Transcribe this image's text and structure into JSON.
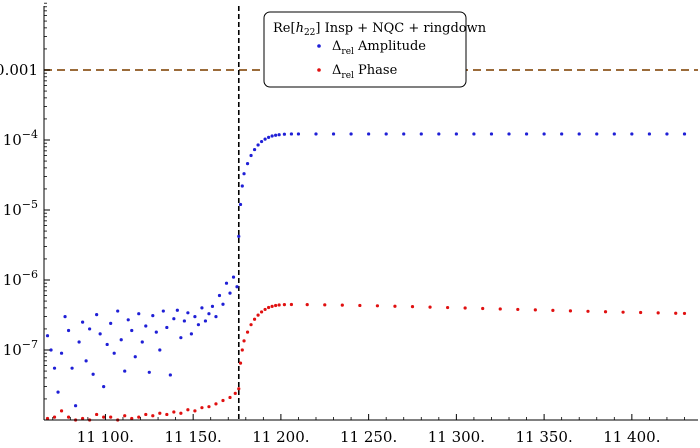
{
  "chart_data": {
    "type": "scatter",
    "title": "",
    "xlabel": "",
    "ylabel": "",
    "xlim": [
      11065,
      11432
    ],
    "ylim": [
      1e-08,
      0.01
    ],
    "yscale": "log",
    "grid": false,
    "x_ticks": [
      {
        "value": 11100,
        "label": "11 100."
      },
      {
        "value": 11150,
        "label": "11 150."
      },
      {
        "value": 11200,
        "label": "11 200."
      },
      {
        "value": 11250,
        "label": "11 250."
      },
      {
        "value": 11300,
        "label": "11 300."
      },
      {
        "value": 11350,
        "label": "11 350."
      },
      {
        "value": 11400,
        "label": "11 400."
      }
    ],
    "y_ticks": [
      {
        "value": 1e-07,
        "base": "10",
        "exp": "−7"
      },
      {
        "value": 1e-06,
        "base": "10",
        "exp": "−6"
      },
      {
        "value": 1e-05,
        "base": "10",
        "exp": "−5"
      },
      {
        "value": 0.0001,
        "base": "10",
        "exp": "−4"
      },
      {
        "value": 0.001,
        "label": "0.001"
      }
    ],
    "reference_lines": [
      {
        "orientation": "horizontal",
        "value": 0.001,
        "style": "dashed",
        "color": "#9b6b3a"
      },
      {
        "orientation": "vertical",
        "value": 11176,
        "style": "dashed",
        "color": "#000000"
      }
    ],
    "legend": {
      "position": "top-center",
      "title_prefix": "Re[",
      "title_h": "h",
      "title_sub": "22",
      "title_suffix": "]  Insp + NQC + ringdown",
      "entries": [
        {
          "delta": "Δ",
          "sub": "rel",
          "text": " Amplitude",
          "color": "#1f1fd6"
        },
        {
          "delta": "Δ",
          "sub": "rel",
          "text": " Phase",
          "color": "#e01010"
        }
      ]
    },
    "series": [
      {
        "name": "Δrel Amplitude",
        "color": "#1f1fd6",
        "points": [
          [
            11067,
            1.6e-07
          ],
          [
            11069,
            1e-07
          ],
          [
            11071,
            5.5e-08
          ],
          [
            11073,
            2.5e-08
          ],
          [
            11075,
            9e-08
          ],
          [
            11077,
            3e-07
          ],
          [
            11079,
            1.9e-07
          ],
          [
            11081,
            5.5e-08
          ],
          [
            11083,
            1.6e-08
          ],
          [
            11085,
            1.3e-07
          ],
          [
            11087,
            2.5e-07
          ],
          [
            11089,
            7e-08
          ],
          [
            11091,
            2e-07
          ],
          [
            11093,
            4.5e-08
          ],
          [
            11095,
            3.2e-07
          ],
          [
            11097,
            1.7e-07
          ],
          [
            11099,
            3e-08
          ],
          [
            11101,
            1.2e-07
          ],
          [
            11103,
            2.4e-07
          ],
          [
            11105,
            9e-08
          ],
          [
            11107,
            3.6e-07
          ],
          [
            11109,
            1.4e-07
          ],
          [
            11111,
            5e-08
          ],
          [
            11113,
            2.7e-07
          ],
          [
            11115,
            1.9e-07
          ],
          [
            11117,
            8e-08
          ],
          [
            11119,
            3.3e-07
          ],
          [
            11121,
            1.3e-07
          ],
          [
            11123,
            2.2e-07
          ],
          [
            11125,
            4.8e-08
          ],
          [
            11127,
            3.1e-07
          ],
          [
            11129,
            1.8e-07
          ],
          [
            11131,
            1e-07
          ],
          [
            11133,
            3.6e-07
          ],
          [
            11135,
            2.1e-07
          ],
          [
            11137,
            4.4e-08
          ],
          [
            11139,
            2.8e-07
          ],
          [
            11141,
            3.7e-07
          ],
          [
            11143,
            1.5e-07
          ],
          [
            11145,
            2.6e-07
          ],
          [
            11147,
            3.4e-07
          ],
          [
            11149,
            1.7e-07
          ],
          [
            11151,
            3e-07
          ],
          [
            11153,
            2.3e-07
          ],
          [
            11155,
            4e-07
          ],
          [
            11157,
            2.6e-07
          ],
          [
            11159,
            3.3e-07
          ],
          [
            11161,
            4.2e-07
          ],
          [
            11163,
            3e-07
          ],
          [
            11165,
            6e-07
          ],
          [
            11167,
            4.5e-07
          ],
          [
            11169,
            9e-07
          ],
          [
            11171,
            6.5e-07
          ],
          [
            11173,
            1.1e-06
          ],
          [
            11175,
            8e-07
          ],
          [
            11176,
            4.2e-06
          ],
          [
            11177,
            1.2e-05
          ],
          [
            11178,
            2.2e-05
          ],
          [
            11179,
            3.3e-05
          ],
          [
            11181,
            4.6e-05
          ],
          [
            11183,
            6e-05
          ],
          [
            11185,
            7.3e-05
          ],
          [
            11187,
            8.5e-05
          ],
          [
            11189,
            9.5e-05
          ],
          [
            11191,
            0.000103
          ],
          [
            11193,
            0.000109
          ],
          [
            11195,
            0.000114
          ],
          [
            11197,
            0.000117
          ],
          [
            11199,
            0.000119
          ],
          [
            11202,
            0.000121
          ],
          [
            11206,
            0.000122
          ],
          [
            11210,
            0.000122
          ],
          [
            11220,
            0.000122
          ],
          [
            11230,
            0.000122
          ],
          [
            11240,
            0.000122
          ],
          [
            11250,
            0.000122
          ],
          [
            11260,
            0.000122
          ],
          [
            11270,
            0.000122
          ],
          [
            11280,
            0.000122
          ],
          [
            11290,
            0.000122
          ],
          [
            11300,
            0.000122
          ],
          [
            11310,
            0.000122
          ],
          [
            11320,
            0.000122
          ],
          [
            11330,
            0.000122
          ],
          [
            11340,
            0.000122
          ],
          [
            11350,
            0.000122
          ],
          [
            11360,
            0.000122
          ],
          [
            11370,
            0.000122
          ],
          [
            11380,
            0.000122
          ],
          [
            11390,
            0.000122
          ],
          [
            11400,
            0.000122
          ],
          [
            11410,
            0.000122
          ],
          [
            11420,
            0.000122
          ],
          [
            11430,
            0.000122
          ]
        ]
      },
      {
        "name": "Δrel Phase",
        "color": "#e01010",
        "points": [
          [
            11067,
            1.05e-08
          ],
          [
            11071,
            1.1e-08
          ],
          [
            11075,
            1.35e-08
          ],
          [
            11079,
            1.1e-08
          ],
          [
            11083,
            1e-08
          ],
          [
            11087,
            1.05e-08
          ],
          [
            11091,
            1e-08
          ],
          [
            11095,
            1.2e-08
          ],
          [
            11099,
            1.1e-08
          ],
          [
            11103,
            1.1e-08
          ],
          [
            11107,
            1e-08
          ],
          [
            11111,
            1.15e-08
          ],
          [
            11115,
            1.05e-08
          ],
          [
            11119,
            1.1e-08
          ],
          [
            11123,
            1.2e-08
          ],
          [
            11127,
            1.15e-08
          ],
          [
            11131,
            1.25e-08
          ],
          [
            11135,
            1.2e-08
          ],
          [
            11139,
            1.3e-08
          ],
          [
            11143,
            1.25e-08
          ],
          [
            11147,
            1.4e-08
          ],
          [
            11151,
            1.35e-08
          ],
          [
            11155,
            1.5e-08
          ],
          [
            11159,
            1.55e-08
          ],
          [
            11163,
            1.7e-08
          ],
          [
            11167,
            1.9e-08
          ],
          [
            11171,
            2.1e-08
          ],
          [
            11174,
            2.4e-08
          ],
          [
            11176,
            2.8e-08
          ],
          [
            11177,
            6.5e-08
          ],
          [
            11178,
            1e-07
          ],
          [
            11179,
            1.35e-07
          ],
          [
            11181,
            1.8e-07
          ],
          [
            11183,
            2.3e-07
          ],
          [
            11185,
            2.75e-07
          ],
          [
            11187,
            3.15e-07
          ],
          [
            11189,
            3.5e-07
          ],
          [
            11191,
            3.8e-07
          ],
          [
            11193,
            4.05e-07
          ],
          [
            11195,
            4.2e-07
          ],
          [
            11197,
            4.32e-07
          ],
          [
            11199,
            4.4e-07
          ],
          [
            11202,
            4.45e-07
          ],
          [
            11206,
            4.47e-07
          ],
          [
            11215,
            4.45e-07
          ],
          [
            11225,
            4.42e-07
          ],
          [
            11235,
            4.38e-07
          ],
          [
            11245,
            4.33e-07
          ],
          [
            11255,
            4.28e-07
          ],
          [
            11265,
            4.22e-07
          ],
          [
            11275,
            4.16e-07
          ],
          [
            11285,
            4.1e-07
          ],
          [
            11295,
            4.04e-07
          ],
          [
            11305,
            3.98e-07
          ],
          [
            11315,
            3.92e-07
          ],
          [
            11325,
            3.86e-07
          ],
          [
            11335,
            3.8e-07
          ],
          [
            11345,
            3.74e-07
          ],
          [
            11355,
            3.68e-07
          ],
          [
            11365,
            3.62e-07
          ],
          [
            11375,
            3.57e-07
          ],
          [
            11385,
            3.52e-07
          ],
          [
            11395,
            3.47e-07
          ],
          [
            11405,
            3.43e-07
          ],
          [
            11415,
            3.39e-07
          ],
          [
            11425,
            3.35e-07
          ],
          [
            11430,
            3.33e-07
          ]
        ]
      }
    ]
  }
}
